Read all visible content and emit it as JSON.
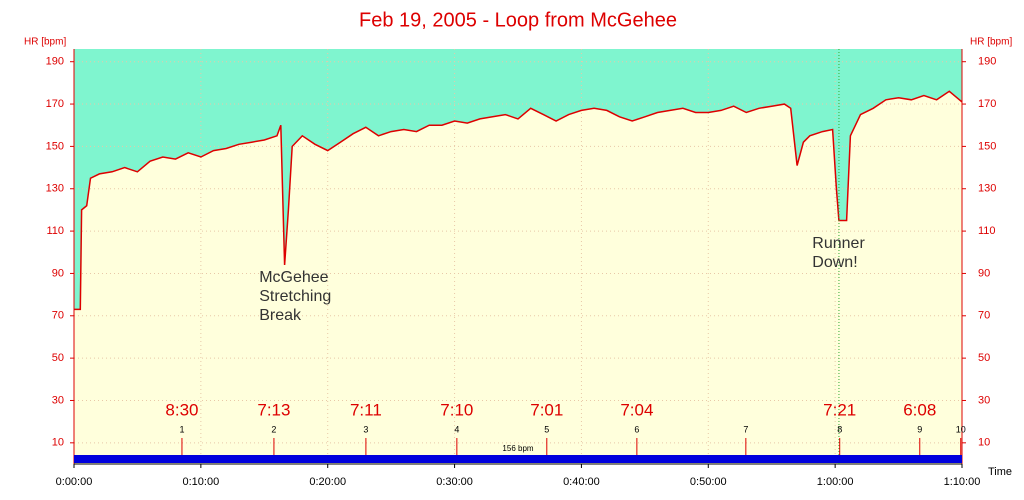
{
  "chart_data": {
    "type": "area",
    "title": "Feb 19, 2005 - Loop from McGehee",
    "y_label": "HR [bpm]",
    "y2_label": "HR [bpm]",
    "x_label": "Time",
    "xlim": [
      0,
      70
    ],
    "ylim": [
      0,
      196
    ],
    "xticks": [
      {
        "value": 0,
        "label": "0:00:00"
      },
      {
        "value": 10,
        "label": "0:10:00"
      },
      {
        "value": 20,
        "label": "0:20:00"
      },
      {
        "value": 30,
        "label": "0:30:00"
      },
      {
        "value": 40,
        "label": "0:40:00"
      },
      {
        "value": 50,
        "label": "0:50:00"
      },
      {
        "value": 60,
        "label": "1:00:00"
      },
      {
        "value": 70,
        "label": "1:10:00"
      }
    ],
    "yticks": [
      10,
      30,
      50,
      70,
      90,
      110,
      130,
      150,
      170,
      190
    ],
    "grid": true,
    "above_color": "#7ff5cf",
    "below_color": "#ffffdc",
    "line_color": "#dd0000",
    "series": [
      {
        "name": "HR",
        "x": [
          0,
          0.5,
          0.6,
          1,
          1.3,
          2,
          3,
          4,
          5,
          6,
          7,
          8,
          9,
          10,
          11,
          12,
          13,
          14,
          15,
          16,
          16.3,
          16.6,
          16.9,
          17.2,
          18,
          19,
          20,
          21,
          22,
          23,
          24,
          25,
          26,
          27,
          28,
          29,
          30,
          31,
          32,
          33,
          34,
          35,
          36,
          37,
          38,
          39,
          40,
          41,
          42,
          43,
          44,
          45,
          46,
          47,
          48,
          49,
          50,
          51,
          52,
          53,
          54,
          55,
          56,
          56.5,
          57,
          57.5,
          58,
          59,
          59.8,
          60.1,
          60.3,
          60.9,
          61.2,
          62,
          63,
          64,
          65,
          66,
          67,
          68,
          69,
          70
        ],
        "values": [
          73,
          73,
          120,
          122,
          135,
          137,
          138,
          140,
          138,
          143,
          145,
          144,
          147,
          145,
          148,
          149,
          151,
          152,
          153,
          155,
          160,
          94,
          120,
          150,
          155,
          151,
          148,
          152,
          156,
          159,
          155,
          157,
          158,
          157,
          160,
          160,
          162,
          161,
          163,
          164,
          165,
          163,
          168,
          165,
          162,
          165,
          167,
          168,
          167,
          164,
          162,
          164,
          166,
          167,
          168,
          166,
          166,
          167,
          169,
          166,
          168,
          169,
          170,
          168,
          141,
          152,
          155,
          157,
          158,
          130,
          115,
          115,
          155,
          165,
          168,
          172,
          173,
          172,
          174,
          172,
          176,
          171
        ]
      }
    ],
    "laps": {
      "x": [
        8.51,
        15.76,
        23.01,
        30.18,
        37.27,
        44.37,
        52.96,
        60.36,
        66.67,
        69.9
      ],
      "numbers": [
        1,
        2,
        3,
        4,
        5,
        6,
        7,
        8,
        9,
        10
      ],
      "paces": [
        "8:30",
        "7:13",
        "7:11",
        "7:10",
        "7:01",
        "7:04",
        null,
        "7:21",
        "6:08",
        null
      ],
      "color": "#dd0000"
    },
    "average_label": "156 bpm",
    "average_bar_color": "#0000dd",
    "annotations": [
      {
        "x": 14.6,
        "y": 88,
        "lines": [
          "McGehee",
          "Stretching",
          "Break"
        ]
      },
      {
        "x": 58.2,
        "y": 104,
        "lines": [
          "Runner",
          "Down!"
        ]
      }
    ],
    "marker_line_x": 60.3
  }
}
